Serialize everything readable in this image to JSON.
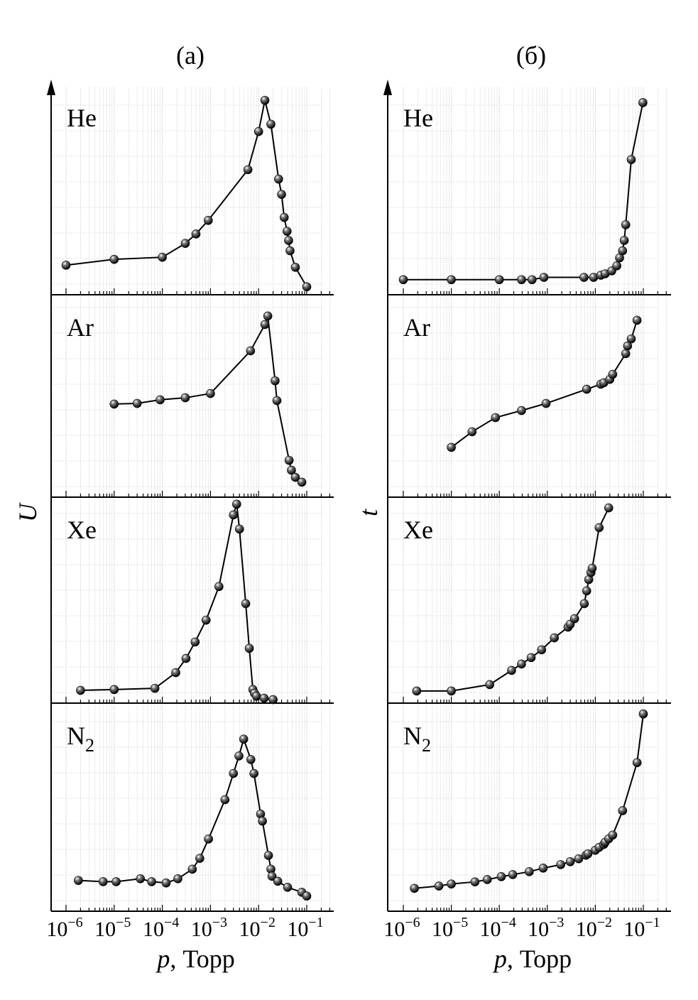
{
  "colors": {
    "line": "#000000",
    "grid": "#dcdcdc",
    "marker": "#222222"
  },
  "chart_data": [
    {
      "type": "line",
      "panel_label": "(а)",
      "ylabel": "U",
      "xlabel": {
        "var": "p",
        "unit": ", Торр"
      },
      "x_scale": "log",
      "xlim": [
        1e-06,
        0.1
      ],
      "ylim": [
        0,
        10
      ],
      "y_units": "arbitrary (no tick labels shown)",
      "grid": true,
      "x_ticks": [
        {
          "base": "10",
          "exp": "−6"
        },
        {
          "base": "10",
          "exp": "−5"
        },
        {
          "base": "10",
          "exp": "−4"
        },
        {
          "base": "10",
          "exp": "−3"
        },
        {
          "base": "10",
          "exp": "−2"
        },
        {
          "base": "10",
          "exp": "−1"
        }
      ],
      "series": [
        {
          "name": "He",
          "x": [
            1e-06,
            1e-05,
            0.0001,
            0.0003,
            0.0005,
            0.0009,
            0.006,
            0.01,
            0.0135,
            0.018,
            0.026,
            0.03,
            0.034,
            0.039,
            0.042,
            0.045,
            0.058,
            0.1
          ],
          "y": [
            1.41,
            1.69,
            1.79,
            2.45,
            2.9,
            3.55,
            5.97,
            7.79,
            9.28,
            8.14,
            5.52,
            4.79,
            3.69,
            3.03,
            2.59,
            2.1,
            1.31,
            0.38
          ]
        },
        {
          "name": "Ar",
          "x": [
            1e-05,
            3e-05,
            9e-05,
            0.0003,
            0.001,
            0.0068,
            0.0135,
            0.0155,
            0.022,
            0.024,
            0.043,
            0.048,
            0.058,
            0.079
          ],
          "y": [
            4.6,
            4.63,
            4.81,
            4.91,
            5.12,
            7.23,
            8.53,
            8.95,
            5.75,
            4.77,
            1.82,
            1.33,
            0.98,
            0.74
          ]
        },
        {
          "name": "Xe",
          "x": [
            2e-06,
            1e-05,
            7e-05,
            0.00019,
            0.00031,
            0.00048,
            0.00081,
            0.0015,
            0.003,
            0.0035,
            0.004,
            0.0054,
            0.0064,
            0.0076,
            0.0082,
            0.009,
            0.013,
            0.02
          ],
          "y": [
            0.62,
            0.66,
            0.72,
            1.48,
            2.17,
            2.97,
            4.03,
            5.66,
            9.14,
            9.66,
            8.45,
            4.83,
            2.66,
            0.66,
            0.48,
            0.34,
            0.24,
            0.17
          ]
        },
        {
          "name": "N",
          "name_sub": "2",
          "x": [
            1.8e-06,
            5.9e-06,
            1.1e-05,
            3.5e-05,
            6e-05,
            0.00012,
            0.00021,
            0.00042,
            0.0006,
            0.00091,
            0.002,
            0.003,
            0.0039,
            0.0049,
            0.0069,
            0.008,
            0.011,
            0.012,
            0.016,
            0.018,
            0.019,
            0.025,
            0.04,
            0.079,
            0.1
          ],
          "y": [
            1.48,
            1.42,
            1.42,
            1.56,
            1.42,
            1.36,
            1.56,
            2.02,
            2.54,
            3.47,
            5.36,
            6.62,
            7.46,
            8.27,
            7.29,
            6.62,
            4.67,
            4.33,
            2.68,
            2.02,
            1.68,
            1.44,
            1.15,
            0.91,
            0.73
          ]
        }
      ]
    },
    {
      "type": "line",
      "panel_label": "(б)",
      "ylabel": "t",
      "xlabel": {
        "var": "p",
        "unit": ", Торр"
      },
      "x_scale": "log",
      "xlim": [
        1e-06,
        0.1
      ],
      "ylim": [
        0,
        10
      ],
      "y_units": "arbitrary (no tick labels shown)",
      "grid": true,
      "x_ticks": [
        {
          "base": "10",
          "exp": "−6"
        },
        {
          "base": "10",
          "exp": "−5"
        },
        {
          "base": "10",
          "exp": "−4"
        },
        {
          "base": "10",
          "exp": "−3"
        },
        {
          "base": "10",
          "exp": "−2"
        },
        {
          "base": "10",
          "exp": "−1"
        }
      ],
      "series": [
        {
          "name": "He",
          "x": [
            1e-06,
            1e-05,
            0.0001,
            0.00029,
            0.00048,
            0.00085,
            0.0058,
            0.0092,
            0.013,
            0.016,
            0.022,
            0.028,
            0.032,
            0.037,
            0.04,
            0.043,
            0.056,
            0.098
          ],
          "y": [
            0.72,
            0.72,
            0.72,
            0.72,
            0.72,
            0.83,
            0.83,
            0.83,
            0.93,
            1.0,
            1.14,
            1.38,
            1.76,
            2.1,
            2.59,
            3.34,
            6.45,
            9.17
          ]
        },
        {
          "name": "Ar",
          "x": [
            1e-05,
            2.7e-05,
            8.3e-05,
            0.00029,
            0.00094,
            0.0066,
            0.013,
            0.015,
            0.02,
            0.023,
            0.043,
            0.047,
            0.056,
            0.074
          ],
          "y": [
            2.46,
            3.23,
            3.93,
            4.28,
            4.63,
            5.33,
            5.58,
            5.65,
            5.82,
            6.07,
            7.09,
            7.47,
            7.82,
            8.74
          ]
        },
        {
          "name": "Xe",
          "x": [
            1.9e-06,
            1e-05,
            6.3e-05,
            0.00018,
            0.00029,
            0.00046,
            0.00076,
            0.0014,
            0.0027,
            0.003,
            0.0037,
            0.0059,
            0.0066,
            0.0073,
            0.0081,
            0.0086,
            0.012,
            0.019
          ],
          "y": [
            0.59,
            0.59,
            0.9,
            1.59,
            1.9,
            2.21,
            2.59,
            3.17,
            3.69,
            3.83,
            4.1,
            4.83,
            5.45,
            6.0,
            6.34,
            6.55,
            8.52,
            9.48
          ]
        },
        {
          "name": "N",
          "name_sub": "2",
          "x": [
            1.7e-06,
            5.5e-06,
            1e-05,
            3.1e-05,
            5.6e-05,
            0.00011,
            0.00019,
            0.00042,
            0.00082,
            0.0019,
            0.003,
            0.0045,
            0.0064,
            0.007,
            0.01,
            0.012,
            0.015,
            0.016,
            0.019,
            0.023,
            0.037,
            0.074,
            0.1
          ],
          "y": [
            1.1,
            1.21,
            1.31,
            1.41,
            1.52,
            1.66,
            1.76,
            1.9,
            2.07,
            2.24,
            2.38,
            2.52,
            2.69,
            2.76,
            2.93,
            3.07,
            3.21,
            3.31,
            3.48,
            3.66,
            4.83,
            7.14,
            9.48
          ]
        }
      ]
    }
  ]
}
